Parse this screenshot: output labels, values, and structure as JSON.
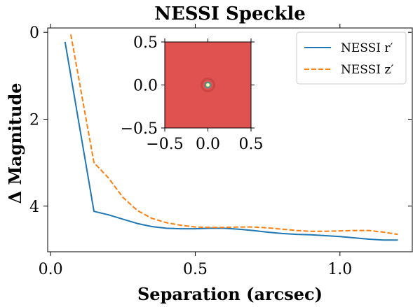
{
  "chart_data": {
    "type": "line",
    "title": "NESSI Speckle",
    "xlabel": "Separation (arcsec)",
    "ylabel": "Δ Magnitude",
    "xlim": [
      -0.01,
      1.25
    ],
    "ylim": [
      5.05,
      -0.1
    ],
    "y_inverted": true,
    "grid": false,
    "legend_placement": "top-right",
    "xticks": [
      0.0,
      0.5,
      1.0
    ],
    "xtick_labels": [
      "0.0",
      "0.5",
      "1.0"
    ],
    "yticks": [
      0,
      2,
      4
    ],
    "ytick_labels": [
      "0",
      "2",
      "4"
    ],
    "series": [
      {
        "name": "NESSI r′",
        "color": "#1f77b4",
        "style": "solid",
        "x": [
          0.05,
          0.15,
          0.2,
          0.25,
          0.3,
          0.35,
          0.4,
          0.45,
          0.5,
          0.55,
          0.6,
          0.65,
          0.7,
          0.75,
          0.8,
          0.85,
          0.9,
          0.95,
          1.0,
          1.05,
          1.1,
          1.15,
          1.2
        ],
        "values": [
          0.22,
          4.12,
          4.2,
          4.3,
          4.4,
          4.47,
          4.51,
          4.52,
          4.52,
          4.51,
          4.51,
          4.53,
          4.56,
          4.6,
          4.63,
          4.65,
          4.66,
          4.68,
          4.7,
          4.73,
          4.76,
          4.78,
          4.78
        ]
      },
      {
        "name": "NESSI z′",
        "color": "#ff7f0e",
        "style": "dashed",
        "x": [
          0.07,
          0.15,
          0.2,
          0.25,
          0.3,
          0.35,
          0.4,
          0.45,
          0.5,
          0.55,
          0.6,
          0.65,
          0.7,
          0.75,
          0.8,
          0.85,
          0.9,
          0.95,
          1.0,
          1.05,
          1.1,
          1.15,
          1.2
        ],
        "values": [
          0.05,
          3.0,
          3.35,
          3.8,
          4.1,
          4.28,
          4.38,
          4.44,
          4.48,
          4.49,
          4.49,
          4.48,
          4.48,
          4.5,
          4.53,
          4.56,
          4.58,
          4.58,
          4.57,
          4.56,
          4.56,
          4.6,
          4.65
        ]
      }
    ],
    "inset": {
      "type": "image",
      "xlim": [
        -0.5,
        0.5
      ],
      "ylim": [
        -0.5,
        0.5
      ],
      "xticks": [
        -0.5,
        0.0,
        0.5
      ],
      "xtick_labels": [
        "−0.5",
        "0.0",
        "0.5"
      ],
      "yticks": [
        -0.5,
        0.0,
        0.5
      ],
      "ytick_labels": [
        "−0.5",
        "0.0",
        "0.5"
      ],
      "background_color": "#e0524f"
    }
  }
}
